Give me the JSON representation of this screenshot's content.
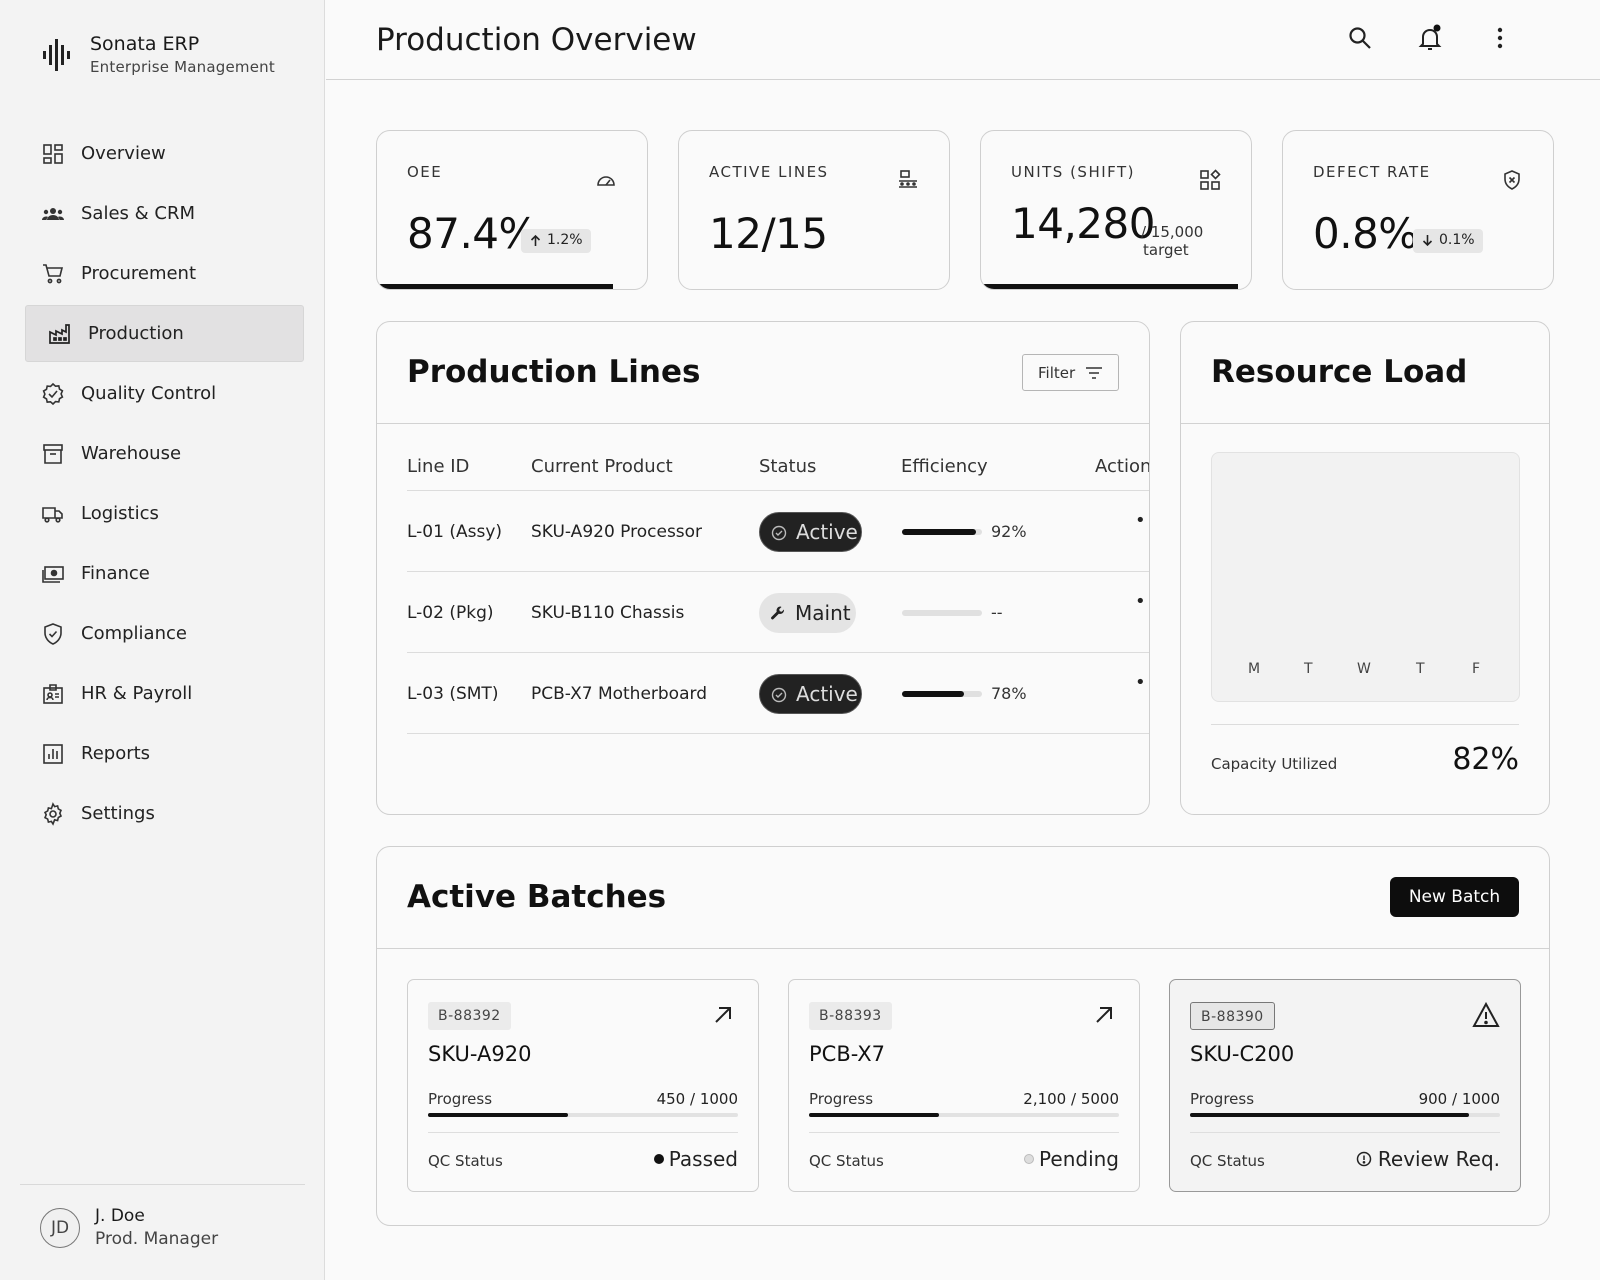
{
  "brand": {
    "title": "Sonata ERP",
    "subtitle": "Enterprise Management"
  },
  "sidebar": {
    "items": [
      {
        "label": "Overview",
        "icon": "dashboard-icon"
      },
      {
        "label": "Sales & CRM",
        "icon": "groups-icon"
      },
      {
        "label": "Procurement",
        "icon": "cart-icon"
      },
      {
        "label": "Production",
        "icon": "factory-icon",
        "active": true
      },
      {
        "label": "Quality Control",
        "icon": "verified-icon"
      },
      {
        "label": "Warehouse",
        "icon": "archive-icon"
      },
      {
        "label": "Logistics",
        "icon": "truck-icon"
      },
      {
        "label": "Finance",
        "icon": "cash-icon"
      },
      {
        "label": "Compliance",
        "icon": "shield-check-icon"
      },
      {
        "label": "HR & Payroll",
        "icon": "badge-icon"
      },
      {
        "label": "Reports",
        "icon": "bar-chart-icon"
      },
      {
        "label": "Settings",
        "icon": "gear-icon"
      }
    ]
  },
  "user": {
    "initials": "JD",
    "name": "J. Doe",
    "role": "Prod. Manager"
  },
  "header": {
    "title": "Production Overview"
  },
  "kpis": {
    "oee": {
      "label": "OEE",
      "value": "87.4%",
      "change": "1.2%",
      "progress": 0.874
    },
    "active_lines": {
      "label": "ACTIVE LINES",
      "value": "12/15"
    },
    "units": {
      "label": "UNITS (SHIFT)",
      "value": "14,280",
      "target_line1": "/ 15,000",
      "target_line2": "target",
      "progress": 0.952
    },
    "defect": {
      "label": "DEFECT RATE",
      "value": "0.8%",
      "change": "0.1%"
    }
  },
  "production_lines": {
    "title": "Production Lines",
    "filter_label": "Filter",
    "columns": [
      "Line ID",
      "Current Product",
      "Status",
      "Efficiency",
      "Actions"
    ],
    "rows": [
      {
        "line_id": "L-01 (Assy)",
        "product": "SKU-A920 Processor",
        "status": "Active",
        "status_type": "active",
        "efficiency": 0.92,
        "efficiency_label": "92%"
      },
      {
        "line_id": "L-02 (Pkg)",
        "product": "SKU-B110 Chassis",
        "status": "Maint",
        "status_type": "maint",
        "efficiency": 0,
        "efficiency_label": "--"
      },
      {
        "line_id": "L-03 (SMT)",
        "product": "PCB-X7 Motherboard",
        "status": "Active",
        "status_type": "active",
        "efficiency": 0.78,
        "efficiency_label": "78%"
      }
    ]
  },
  "resource_load": {
    "title": "Resource Load",
    "days": [
      "M",
      "T",
      "W",
      "T",
      "F"
    ],
    "capacity_label": "Capacity Utilized",
    "capacity_value": "82%"
  },
  "batches": {
    "title": "Active Batches",
    "new_label": "New Batch",
    "progress_label": "Progress",
    "qc_label": "QC Status",
    "items": [
      {
        "id": "B-88392",
        "name": "SKU-A920",
        "progress_text": "450 / 1000",
        "progress": 0.45,
        "qc": "Passed",
        "qc_type": "passed"
      },
      {
        "id": "B-88393",
        "name": "PCB-X7",
        "progress_text": "2,100 / 5000",
        "progress": 0.42,
        "qc": "Pending",
        "qc_type": "pending"
      },
      {
        "id": "B-88390",
        "name": "SKU-C200",
        "progress_text": "900 / 1000",
        "progress": 0.9,
        "qc": "Review Req.",
        "qc_type": "review"
      }
    ]
  }
}
